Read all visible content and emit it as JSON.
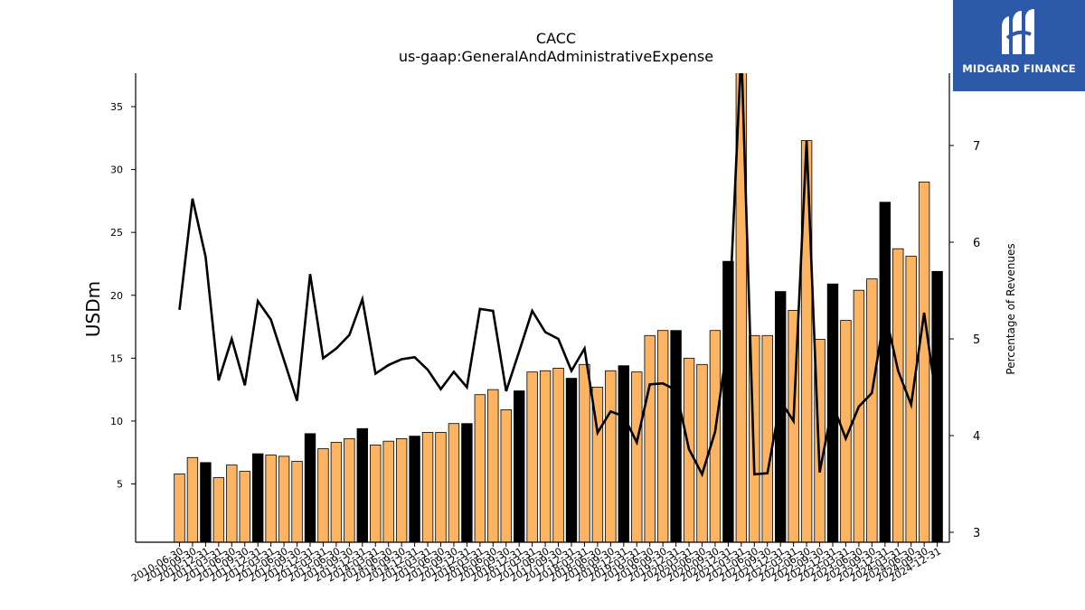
{
  "watermark": {
    "text": "MIDGARD FINANCE",
    "icon": "mf-logo-icon"
  },
  "chart_data": {
    "type": "bar+line",
    "title": "CACC",
    "subtitle": "us-gaap:GeneralAndAdministrativeExpense",
    "ylabel": "USDm",
    "y2label": "Percentage of Revenues",
    "ylim": [
      0,
      37.5
    ],
    "y2lim": [
      2.9,
      7.8
    ],
    "yticks": [
      5,
      10,
      15,
      20,
      25,
      30,
      35
    ],
    "y2ticks": [
      3,
      4,
      5,
      6,
      7
    ],
    "grid": false,
    "colors": {
      "quarterly": "#fdb462",
      "annual": "#000000",
      "line": "#000000"
    },
    "categories": [
      "2010-06-30",
      "2010-09-30",
      "2010-12-31",
      "2011-03-31",
      "2011-06-30",
      "2011-09-30",
      "2011-12-31",
      "2012-03-31",
      "2012-06-30",
      "2012-09-30",
      "2012-12-31",
      "2013-03-31",
      "2013-06-30",
      "2013-09-30",
      "2013-12-31",
      "2014-03-31",
      "2014-06-30",
      "2014-09-30",
      "2014-12-31",
      "2015-03-31",
      "2015-06-30",
      "2015-09-30",
      "2015-12-31",
      "2016-03-31",
      "2016-06-30",
      "2016-09-30",
      "2016-12-31",
      "2017-03-31",
      "2017-06-30",
      "2017-09-30",
      "2017-12-31",
      "2018-03-31",
      "2018-06-30",
      "2018-09-30",
      "2018-12-31",
      "2019-03-31",
      "2019-06-30",
      "2019-09-30",
      "2019-12-31",
      "2020-03-31",
      "2020-06-30",
      "2020-09-30",
      "2020-12-31",
      "2021-03-31",
      "2021-06-30",
      "2021-09-30",
      "2021-12-31",
      "2022-03-31",
      "2022-06-30",
      "2022-09-30",
      "2022-12-31",
      "2023-03-31",
      "2023-06-30",
      "2023-09-30",
      "2023-12-31",
      "2024-03-31",
      "2024-06-30",
      "2024-09-30",
      "2024-12-31"
    ],
    "bar_values": [
      5.8,
      7.1,
      6.7,
      5.5,
      6.5,
      6.0,
      7.4,
      7.3,
      7.2,
      6.8,
      9.0,
      7.8,
      8.3,
      8.6,
      9.4,
      8.1,
      8.4,
      8.6,
      8.8,
      9.1,
      9.1,
      9.8,
      9.8,
      12.1,
      12.5,
      10.9,
      12.4,
      13.9,
      14.0,
      14.2,
      13.4,
      14.5,
      12.7,
      14.0,
      14.4,
      13.9,
      16.8,
      17.2,
      17.2,
      15.0,
      14.5,
      17.2,
      22.7,
      38.0,
      16.8,
      16.8,
      20.3,
      18.8,
      32.3,
      16.5,
      20.9,
      18.0,
      20.4,
      21.3,
      27.4,
      23.7,
      23.1,
      29.0,
      21.9
    ],
    "annual_flags": [
      false,
      false,
      true,
      false,
      false,
      false,
      true,
      false,
      false,
      false,
      true,
      false,
      false,
      false,
      true,
      false,
      false,
      false,
      true,
      false,
      false,
      false,
      true,
      false,
      false,
      false,
      true,
      false,
      false,
      false,
      true,
      false,
      false,
      false,
      true,
      false,
      false,
      false,
      true,
      false,
      false,
      false,
      true,
      false,
      false,
      false,
      true,
      false,
      false,
      false,
      true,
      false,
      false,
      false,
      true,
      false,
      false,
      false,
      true
    ],
    "line_values": [
      5.3,
      6.45,
      5.85,
      4.57,
      5.0,
      4.52,
      5.39,
      5.2,
      4.78,
      4.36,
      5.67,
      4.8,
      4.9,
      5.04,
      5.41,
      4.64,
      4.73,
      4.79,
      4.81,
      4.68,
      4.48,
      4.66,
      4.5,
      5.31,
      5.29,
      4.46,
      4.87,
      5.29,
      5.07,
      5.0,
      4.67,
      4.9,
      4.03,
      4.25,
      4.2,
      3.93,
      4.53,
      4.54,
      4.47,
      3.86,
      3.6,
      4.04,
      5.0,
      8.0,
      3.6,
      3.61,
      4.36,
      4.15,
      7.05,
      3.62,
      4.32,
      3.97,
      4.3,
      4.44,
      5.28,
      4.67,
      4.32,
      5.27,
      4.3
    ]
  }
}
